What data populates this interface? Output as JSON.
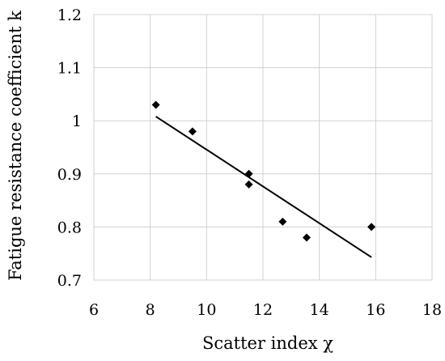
{
  "chart_data": {
    "type": "scatter",
    "title": "",
    "xlabel": "Scatter index χ",
    "ylabel": "Fatigue resistance coefficient k",
    "xlim": [
      6,
      18
    ],
    "ylim": [
      0.7,
      1.2
    ],
    "x_ticks": [
      6,
      8,
      10,
      12,
      14,
      16,
      18
    ],
    "x_tick_labels": [
      "6",
      "8",
      "10",
      "12",
      "14",
      "16",
      "18"
    ],
    "y_ticks": [
      0.7,
      0.8,
      0.9,
      1.0,
      1.1,
      1.2
    ],
    "y_tick_labels": [
      "0.7",
      "0.8",
      "0.9",
      "1",
      "1.1",
      "1.2"
    ],
    "grid": true,
    "legend": "none",
    "series": [
      {
        "marker": "diamond",
        "color": "#000000",
        "points": [
          {
            "x": 8.2,
            "y": 1.03
          },
          {
            "x": 9.5,
            "y": 0.98
          },
          {
            "x": 11.5,
            "y": 0.9
          },
          {
            "x": 11.5,
            "y": 0.88
          },
          {
            "x": 12.7,
            "y": 0.81
          },
          {
            "x": 13.55,
            "y": 0.78
          },
          {
            "x": 15.85,
            "y": 0.8
          }
        ]
      }
    ],
    "trendline": {
      "type": "linear",
      "color": "#000000",
      "points": [
        {
          "x": 8.2,
          "y": 1.008
        },
        {
          "x": 15.85,
          "y": 0.743
        }
      ]
    }
  }
}
